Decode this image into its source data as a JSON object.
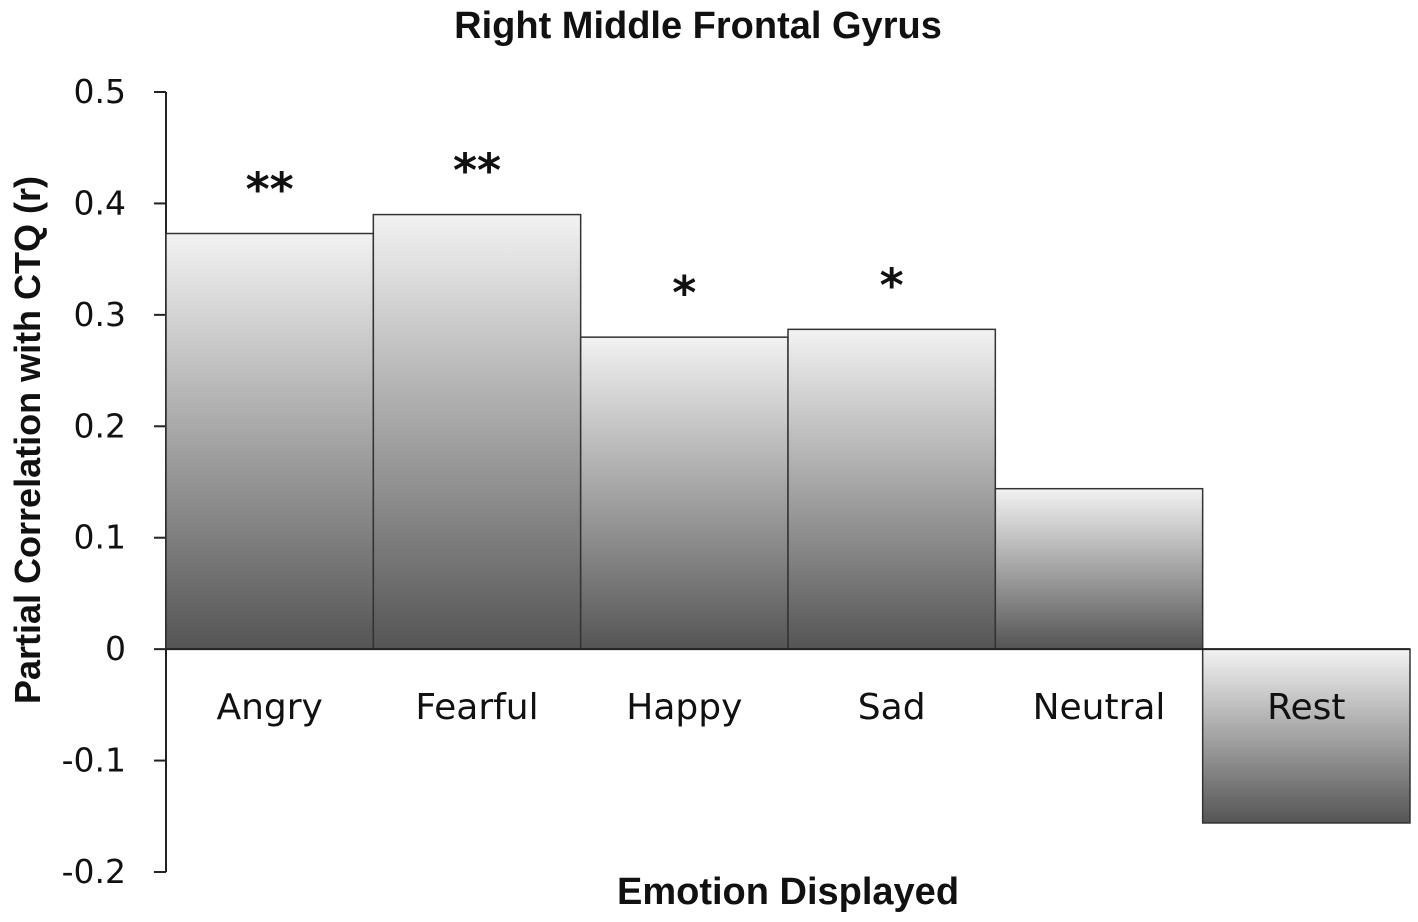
{
  "chart_data": {
    "type": "bar",
    "title": "Right Middle Frontal Gyrus",
    "xlabel": "Emotion Displayed",
    "ylabel": "Partial Correlation with CTQ (r)",
    "categories": [
      "Angry",
      "Fearful",
      "Happy",
      "Sad",
      "Neutral",
      "Rest"
    ],
    "values": [
      0.373,
      0.39,
      0.28,
      0.287,
      0.144,
      -0.156
    ],
    "significance": [
      "**",
      "**",
      "*",
      "*",
      "",
      ""
    ],
    "ylim": [
      -0.2,
      0.5
    ],
    "yticks": [
      "-0.2",
      "-0.1",
      "0",
      "0.1",
      "0.2",
      "0.3",
      "0.4",
      "0.5"
    ],
    "ytick_values": [
      -0.2,
      -0.1,
      0,
      0.1,
      0.2,
      0.3,
      0.4,
      0.5
    ],
    "grid": false,
    "bar_colors": {
      "light": "#f2f2f2",
      "dark": "#555555"
    }
  }
}
